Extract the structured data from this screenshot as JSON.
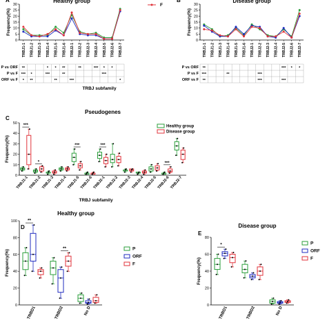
{
  "colors": {
    "p": "#2a9d3a",
    "orf": "#1f2bbf",
    "f": "#e0323a",
    "yellow": "#d4b800",
    "axis": "#000000"
  },
  "chart_data": [
    {
      "type": "line",
      "panel": "A",
      "title": "Healthy group",
      "ylabel": "Frequency(%)",
      "xlabel": "TRBJ subfamily",
      "ylim": [
        0,
        30
      ],
      "yticks": [
        0,
        5,
        10,
        15,
        20,
        25,
        30
      ],
      "legend_visible": [
        "F"
      ],
      "categories": [
        "TRBJ1-1",
        "TRBJ1-2",
        "TRBJ1-3",
        "TRBJ1-4",
        "TRBJ1-5",
        "TRBJ1-6",
        "TRBJ2-1",
        "TRBJ2-2",
        "TRBJ2-3",
        "TRBJ2-4",
        "TRBJ2-5",
        "TRBJ2-6",
        "TRBJ2-7"
      ],
      "series": [
        {
          "name": "P",
          "values": [
            9,
            4,
            4,
            4,
            11,
            6,
            21,
            7,
            5,
            6,
            2,
            2,
            26
          ]
        },
        {
          "name": "ORF",
          "values": [
            7,
            3,
            3,
            3,
            8,
            4,
            18,
            5,
            4,
            4,
            1,
            1,
            24
          ]
        },
        {
          "name": "F",
          "values": [
            11,
            4,
            3,
            5,
            9,
            4,
            23,
            6,
            5,
            5,
            1,
            1,
            25
          ]
        }
      ],
      "sig_table": {
        "rows": [
          "P vs ORF",
          "P vs F",
          "ORF vs F"
        ],
        "cells": [
          [
            "**",
            "",
            "",
            "*",
            "*",
            "**",
            "",
            "**",
            "",
            "***",
            "*",
            "*",
            ""
          ],
          [
            "***",
            "*",
            "",
            "***",
            "",
            "**",
            "",
            "",
            "",
            "",
            "***",
            "",
            ""
          ],
          [
            "*",
            "**",
            "",
            "",
            "**",
            "",
            "***",
            "",
            "",
            "",
            "",
            "",
            "*"
          ]
        ]
      }
    },
    {
      "type": "line",
      "panel": "B",
      "title": "Disease group",
      "ylabel": "Frequency(%)",
      "ylim": [
        0,
        30
      ],
      "yticks": [
        0,
        5,
        10,
        15,
        20,
        25,
        30
      ],
      "categories": [
        "TRBJ1-1",
        "TRBJ1-2",
        "TRBJ1-3",
        "TRBJ1-4",
        "TRBJ1-5",
        "TRBJ1-6",
        "TRBJ2-1",
        "TRBJ2-2",
        "TRBJ2-3",
        "TRBJ2-4",
        "TRBJ2-5",
        "TRBJ2-6",
        "TRBJ2-7"
      ],
      "series": [
        {
          "name": "P",
          "values": [
            13,
            9,
            3,
            4,
            10,
            4,
            13,
            9,
            4,
            3,
            9,
            3,
            25
          ]
        },
        {
          "name": "ORF",
          "values": [
            12,
            7,
            3,
            3,
            11,
            5,
            12,
            11,
            3,
            2,
            10,
            2,
            20
          ]
        },
        {
          "name": "F",
          "values": [
            9,
            8,
            4,
            3,
            9,
            3,
            11,
            10,
            3,
            3,
            7,
            2,
            22
          ]
        }
      ],
      "sig_table": {
        "rows": [
          "P vs ORF",
          "P vs F",
          "ORF vs F"
        ],
        "cells": [
          [
            "**",
            "",
            "",
            "",
            "",
            "",
            "",
            "",
            "",
            "",
            "***",
            "*",
            "*"
          ],
          [
            "***",
            "",
            "",
            "**",
            "",
            "",
            "",
            "***",
            "",
            "",
            "",
            "",
            ""
          ],
          [
            "**",
            "",
            "",
            "",
            "",
            "",
            "",
            "***",
            "",
            "",
            "***",
            "",
            ""
          ]
        ]
      }
    },
    {
      "type": "box",
      "panel": "C",
      "title": "Pseudogenes",
      "ylabel": "Frequency(%)",
      "xlabel": "TRBJ subfamily",
      "ylim": [
        0,
        50
      ],
      "yticks": [
        0,
        10,
        20,
        30,
        40,
        50
      ],
      "legend": [
        "Healthy group",
        "Disease group"
      ],
      "categories": [
        "TRBJ1-1",
        "TRBJ1-2",
        "TRBJ1-3",
        "TRBJ1-4",
        "TRBJ1-5",
        "TRBJ1-6",
        "TRBJ2-1",
        "TRBJ2-2",
        "TRBJ2-3",
        "TRBJ2-4",
        "TRBJ2-5",
        "TRBJ2-6",
        "TRBJ2-7"
      ],
      "boxes": [
        [
          [
            4,
            5,
            6,
            7,
            8
          ],
          [
            6,
            10,
            20,
            38,
            44
          ]
        ],
        [
          [
            2,
            3,
            4,
            5,
            6
          ],
          [
            3,
            4,
            6,
            8,
            9
          ]
        ],
        [
          [
            1,
            2,
            3,
            3,
            4
          ],
          [
            1,
            2,
            3,
            4,
            5
          ]
        ],
        [
          [
            4,
            5,
            6,
            7,
            8
          ],
          [
            4,
            5,
            6,
            7,
            8
          ]
        ],
        [
          [
            10,
            13,
            17,
            21,
            25
          ],
          [
            5,
            7,
            9,
            11,
            13
          ]
        ],
        [
          [
            1,
            1,
            2,
            2,
            3
          ],
          [
            1,
            1,
            2,
            2,
            3
          ]
        ],
        [
          [
            13,
            16,
            19,
            22,
            25
          ],
          [
            8,
            11,
            14,
            17,
            20
          ]
        ],
        [
          [
            8,
            12,
            15,
            20,
            30
          ],
          [
            9,
            12,
            15,
            18,
            21
          ]
        ],
        [
          [
            3,
            4,
            5,
            5,
            6
          ],
          [
            3,
            4,
            5,
            6,
            6
          ]
        ],
        [
          [
            1,
            2,
            2,
            3,
            3
          ],
          [
            1,
            2,
            3,
            4,
            5
          ]
        ],
        [
          [
            3,
            4,
            6,
            8,
            10
          ],
          [
            4,
            5,
            7,
            9,
            11
          ]
        ],
        [
          [
            1,
            1,
            2,
            2,
            3
          ],
          [
            2,
            3,
            4,
            6,
            8
          ]
        ],
        [
          [
            19,
            24,
            28,
            32,
            35
          ],
          [
            12,
            15,
            20,
            24,
            26
          ]
        ]
      ],
      "significance": [
        {
          "index": 0,
          "label": "***"
        },
        {
          "index": 1,
          "label": "*"
        },
        {
          "index": 4,
          "label": "***"
        },
        {
          "index": 6,
          "label": "***"
        },
        {
          "index": 11,
          "label": "***"
        }
      ]
    },
    {
      "type": "box",
      "panel": "D",
      "title": "Healthy group",
      "ylabel": "Frequency(%)",
      "ylim": [
        0,
        100
      ],
      "yticks": [
        0,
        20,
        40,
        60,
        80,
        100
      ],
      "legend": [
        "P",
        "ORF",
        "F"
      ],
      "categories": [
        "TRBD1",
        "TRBD2",
        "No D"
      ],
      "boxes": [
        [
          [
            35,
            42,
            52,
            62,
            68
          ],
          [
            40,
            52,
            60,
            85,
            95
          ],
          [
            32,
            36,
            40,
            42,
            44
          ]
        ],
        [
          [
            25,
            36,
            44,
            52,
            56
          ],
          [
            8,
            15,
            32,
            42,
            45
          ],
          [
            40,
            46,
            52,
            58,
            62
          ]
        ],
        [
          [
            2,
            4,
            8,
            12,
            14
          ],
          [
            1,
            2,
            3,
            5,
            7
          ],
          [
            2,
            3,
            5,
            9,
            12
          ]
        ]
      ],
      "significance": [
        {
          "group": 0,
          "label": "**"
        },
        {
          "group": 1,
          "label": "**"
        }
      ]
    },
    {
      "type": "box",
      "panel": "E",
      "title": "Disease group",
      "ylabel": "Frequency(%)",
      "ylim": [
        0,
        80
      ],
      "yticks": [
        0,
        20,
        40,
        60,
        80
      ],
      "legend": [
        "P",
        "ORF",
        "F"
      ],
      "categories": [
        "TRBD1",
        "TRBD2",
        "No D"
      ],
      "boxes": [
        [
          [
            36,
            42,
            48,
            55,
            60
          ],
          [
            55,
            58,
            61,
            63,
            66
          ],
          [
            45,
            50,
            56,
            60,
            62
          ]
        ],
        [
          [
            32,
            38,
            42,
            48,
            52
          ],
          [
            30,
            32,
            34,
            36,
            38
          ],
          [
            30,
            35,
            40,
            45,
            48
          ]
        ],
        [
          [
            1,
            2,
            4,
            6,
            8
          ],
          [
            1,
            2,
            3,
            4,
            5
          ],
          [
            2,
            3,
            4,
            5,
            6
          ]
        ]
      ],
      "significance": [
        {
          "group": 0,
          "label": "*"
        }
      ]
    }
  ]
}
